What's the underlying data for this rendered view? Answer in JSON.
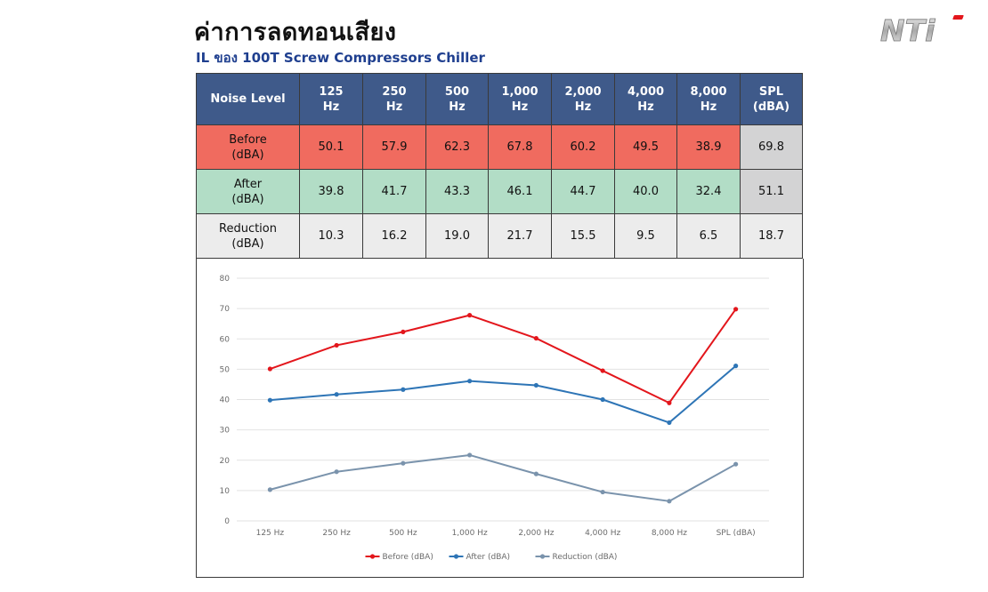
{
  "header": {
    "title": "ค่าการลดทอนเสียง",
    "subtitle": "IL ของ 100T Screw Compressors Chiller"
  },
  "logo": {
    "name": "nti-logo",
    "text": "NTi"
  },
  "table": {
    "corner_label": "Noise Level",
    "columns": [
      [
        "125",
        "Hz"
      ],
      [
        "250",
        "Hz"
      ],
      [
        "500",
        "Hz"
      ],
      [
        "1,000",
        "Hz"
      ],
      [
        "2,000",
        "Hz"
      ],
      [
        "4,000",
        "Hz"
      ],
      [
        "8,000",
        "Hz"
      ],
      [
        "SPL",
        "(dBA)"
      ]
    ],
    "rows": [
      {
        "label": [
          "Before",
          "(dBA)"
        ],
        "values": [
          "50.1",
          "57.9",
          "62.3",
          "67.8",
          "60.2",
          "49.5",
          "38.9",
          "69.8"
        ]
      },
      {
        "label": [
          "After",
          "(dBA)"
        ],
        "values": [
          "39.8",
          "41.7",
          "43.3",
          "46.1",
          "44.7",
          "40.0",
          "32.4",
          "51.1"
        ]
      },
      {
        "label": [
          "Reduction",
          "(dBA)"
        ],
        "values": [
          "10.3",
          "16.2",
          "19.0",
          "21.7",
          "15.5",
          "9.5",
          "6.5",
          "18.7"
        ]
      }
    ]
  },
  "colors": {
    "header_bg": "#3f5a8a",
    "before_row": "#f06b5f",
    "after_row": "#b2ddc6",
    "reduction_row": "#ececec",
    "spl_cell": "#d3d3d4",
    "subtitle": "#1f3f8f"
  },
  "chart_data": {
    "type": "line",
    "categories": [
      "125 Hz",
      "250 Hz",
      "500 Hz",
      "1,000 Hz",
      "2,000 Hz",
      "4,000 Hz",
      "8,000 Hz",
      "SPL (dBA)"
    ],
    "series": [
      {
        "name": "Before (dBA)",
        "color": "#e3161c",
        "values": [
          50.1,
          57.9,
          62.3,
          67.8,
          60.2,
          49.5,
          38.9,
          69.8
        ]
      },
      {
        "name": "After (dBA)",
        "color": "#2e75b6",
        "values": [
          39.8,
          41.7,
          43.3,
          46.1,
          44.7,
          40.0,
          32.4,
          51.1
        ]
      },
      {
        "name": "Reduction (dBA)",
        "color": "#7a93ac",
        "values": [
          10.3,
          16.2,
          19.0,
          21.7,
          15.5,
          9.5,
          6.5,
          18.7
        ]
      }
    ],
    "ylim": [
      0,
      80
    ],
    "yticks": [
      0,
      10,
      20,
      30,
      40,
      50,
      60,
      70,
      80
    ],
    "grid": true,
    "legend": "bottom"
  }
}
